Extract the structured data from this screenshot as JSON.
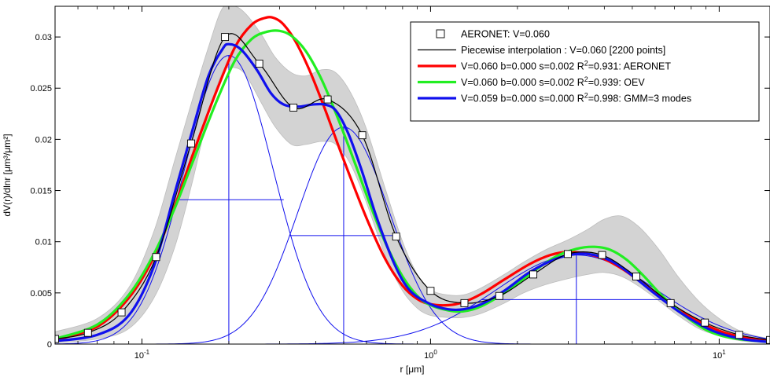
{
  "chart_data": {
    "type": "line",
    "title": "",
    "xlabel": "r [μm]",
    "ylabel": "dV(r)/dlnr [μm³/μm²]",
    "xscale": "log",
    "xlim": [
      0.05,
      15
    ],
    "ylim": [
      0,
      0.033
    ],
    "grid": false,
    "legend_position": "top-right",
    "x_ticks": [
      {
        "value": 0.1,
        "base": "10",
        "exp": "-1"
      },
      {
        "value": 1,
        "base": "10",
        "exp": "0"
      },
      {
        "value": 10,
        "base": "10",
        "exp": "1"
      }
    ],
    "y_ticks": [
      {
        "value": 0,
        "label": "0"
      },
      {
        "value": 0.005,
        "label": "0.005"
      },
      {
        "value": 0.01,
        "label": "0.01"
      },
      {
        "value": 0.015,
        "label": "0.015"
      },
      {
        "value": 0.02,
        "label": "0.02"
      },
      {
        "value": 0.025,
        "label": "0.025"
      },
      {
        "value": 0.03,
        "label": "0.03"
      }
    ],
    "uncertainty_band": {
      "color": "#d3d3d3",
      "x": [
        0.05,
        0.07,
        0.09,
        0.11,
        0.13,
        0.15,
        0.17,
        0.19,
        0.21,
        0.23,
        0.26,
        0.29,
        0.33,
        0.37,
        0.42,
        0.47,
        0.53,
        0.6,
        0.7,
        0.8,
        0.9,
        1.0,
        1.15,
        1.3,
        1.5,
        1.8,
        2.1,
        2.5,
        3.0,
        3.5,
        4.0,
        4.6,
        5.3,
        6.2,
        7.2,
        8.5,
        10.0,
        12.0,
        15.0
      ],
      "upper": [
        0.0012,
        0.0025,
        0.0055,
        0.011,
        0.018,
        0.024,
        0.029,
        0.0328,
        0.033,
        0.0322,
        0.0302,
        0.028,
        0.0265,
        0.0262,
        0.0268,
        0.0265,
        0.0245,
        0.021,
        0.015,
        0.01,
        0.0068,
        0.0053,
        0.0048,
        0.0048,
        0.0055,
        0.0068,
        0.008,
        0.0092,
        0.0102,
        0.0112,
        0.0122,
        0.0125,
        0.0114,
        0.0092,
        0.0066,
        0.0042,
        0.0025,
        0.0012,
        0.0005
      ],
      "lower": [
        0.0001,
        0.0005,
        0.0015,
        0.0045,
        0.0095,
        0.016,
        0.0225,
        0.0265,
        0.027,
        0.0262,
        0.0235,
        0.0212,
        0.0195,
        0.0195,
        0.0198,
        0.0195,
        0.0175,
        0.0138,
        0.0085,
        0.0052,
        0.0035,
        0.0028,
        0.0026,
        0.0026,
        0.003,
        0.004,
        0.005,
        0.0058,
        0.0064,
        0.0068,
        0.007,
        0.0066,
        0.0056,
        0.0042,
        0.0028,
        0.0015,
        0.0008,
        0.0003,
        0.0001
      ]
    },
    "series": [
      {
        "name": "AERONET: V=0.060",
        "style": "markers",
        "color": "#000000",
        "x": [
          0.05,
          0.065,
          0.085,
          0.112,
          0.148,
          0.194,
          0.255,
          0.335,
          0.44,
          0.58,
          0.76,
          1.0,
          1.31,
          1.73,
          2.27,
          2.99,
          3.93,
          5.16,
          6.79,
          8.92,
          11.73,
          15.0
        ],
        "y": [
          0.0005,
          0.0011,
          0.0031,
          0.0085,
          0.0196,
          0.03,
          0.0274,
          0.0231,
          0.0239,
          0.0204,
          0.0105,
          0.0052,
          0.004,
          0.0047,
          0.0068,
          0.0088,
          0.0087,
          0.0066,
          0.004,
          0.0021,
          0.0009,
          0.0004
        ]
      },
      {
        "name": "Piecewise interpolation : V=0.060 [2200 points]",
        "style": "line",
        "color": "#000000",
        "width": 1.2,
        "x": [
          0.05,
          0.065,
          0.085,
          0.112,
          0.148,
          0.194,
          0.255,
          0.335,
          0.44,
          0.58,
          0.76,
          1.0,
          1.31,
          1.73,
          2.27,
          2.99,
          3.93,
          5.16,
          6.79,
          8.92,
          11.73,
          15.0
        ],
        "y": [
          0.0005,
          0.0011,
          0.0031,
          0.0085,
          0.0196,
          0.03,
          0.0274,
          0.0231,
          0.0239,
          0.0204,
          0.0105,
          0.0052,
          0.004,
          0.0047,
          0.0068,
          0.0088,
          0.0087,
          0.0066,
          0.004,
          0.0021,
          0.0009,
          0.0004
        ]
      },
      {
        "name": "V=0.060 b=0.000 s=0.002 R²=0.931: AERONET",
        "style": "line",
        "color": "#ff0000",
        "width": 3.2,
        "x": [
          0.05,
          0.07,
          0.09,
          0.11,
          0.13,
          0.15,
          0.18,
          0.21,
          0.24,
          0.27,
          0.29,
          0.31,
          0.34,
          0.38,
          0.43,
          0.5,
          0.6,
          0.7,
          0.8,
          0.9,
          1.0,
          1.15,
          1.3,
          1.5,
          1.8,
          2.2,
          2.6,
          3.0,
          3.5,
          4.0,
          4.7,
          5.5,
          6.5,
          8.0,
          10.0,
          12.0,
          15.0
        ],
        "y": [
          0.0004,
          0.0017,
          0.0045,
          0.0085,
          0.0135,
          0.0185,
          0.0245,
          0.029,
          0.0312,
          0.0319,
          0.0318,
          0.0312,
          0.0296,
          0.0268,
          0.023,
          0.018,
          0.0123,
          0.0082,
          0.0057,
          0.0044,
          0.0039,
          0.0038,
          0.0041,
          0.0049,
          0.0063,
          0.0078,
          0.0087,
          0.009,
          0.0088,
          0.0083,
          0.0072,
          0.0058,
          0.0043,
          0.0026,
          0.0013,
          0.0007,
          0.0003
        ]
      },
      {
        "name": "V=0.060 b=0.000 s=0.002 R²=0.939: OEV",
        "style": "line",
        "color": "#22ee22",
        "width": 3.2,
        "x": [
          0.05,
          0.07,
          0.09,
          0.11,
          0.13,
          0.15,
          0.18,
          0.21,
          0.24,
          0.27,
          0.3,
          0.33,
          0.37,
          0.42,
          0.48,
          0.55,
          0.62,
          0.7,
          0.8,
          0.9,
          1.0,
          1.15,
          1.3,
          1.5,
          1.8,
          2.2,
          2.7,
          3.2,
          3.7,
          4.2,
          4.8,
          5.5,
          6.3,
          7.5,
          9.0,
          11.0,
          15.0
        ],
        "y": [
          0.0005,
          0.0019,
          0.0048,
          0.0088,
          0.0133,
          0.0178,
          0.0235,
          0.0277,
          0.0298,
          0.0305,
          0.0306,
          0.0301,
          0.0286,
          0.0258,
          0.0219,
          0.0175,
          0.0135,
          0.0098,
          0.0066,
          0.0047,
          0.0038,
          0.0033,
          0.0032,
          0.0037,
          0.005,
          0.0068,
          0.0085,
          0.0093,
          0.0095,
          0.0092,
          0.0082,
          0.0066,
          0.0048,
          0.0029,
          0.0014,
          0.0006,
          0.0002
        ]
      },
      {
        "name": "V=0.059 b=0.000 s=0.000 R²=0.998: GMM=3 modes",
        "style": "line",
        "color": "#1010ee",
        "width": 3.2,
        "x": [
          0.05,
          0.07,
          0.09,
          0.11,
          0.13,
          0.15,
          0.17,
          0.19,
          0.2,
          0.22,
          0.25,
          0.28,
          0.31,
          0.35,
          0.39,
          0.43,
          0.47,
          0.52,
          0.58,
          0.65,
          0.75,
          0.85,
          1.0,
          1.15,
          1.3,
          1.5,
          1.8,
          2.2,
          2.7,
          3.2,
          3.7,
          4.3,
          5.0,
          6.0,
          7.5,
          9.5,
          12.0,
          15.0
        ],
        "y": [
          0.0003,
          0.0009,
          0.0028,
          0.0076,
          0.0148,
          0.021,
          0.0262,
          0.0288,
          0.0293,
          0.0288,
          0.0268,
          0.0245,
          0.0234,
          0.0232,
          0.0234,
          0.0234,
          0.0228,
          0.0205,
          0.0168,
          0.0124,
          0.0078,
          0.0052,
          0.0039,
          0.0034,
          0.0034,
          0.0039,
          0.0052,
          0.007,
          0.0083,
          0.0088,
          0.0087,
          0.008,
          0.0067,
          0.0049,
          0.0029,
          0.0013,
          0.0005,
          0.0002
        ]
      }
    ],
    "gmm_modes": {
      "color": "#1010ee",
      "width": 1,
      "modes": [
        {
          "center": 0.2,
          "peak": 0.0282,
          "halfmax_left": 0.135,
          "halfmax_right": 0.31
        },
        {
          "center": 0.5,
          "peak": 0.0212,
          "halfmax_left": 0.325,
          "halfmax_right": 0.77
        },
        {
          "center": 3.2,
          "peak": 0.0087,
          "halfmax_left": 1.5,
          "halfmax_right": 6.8
        }
      ]
    }
  }
}
